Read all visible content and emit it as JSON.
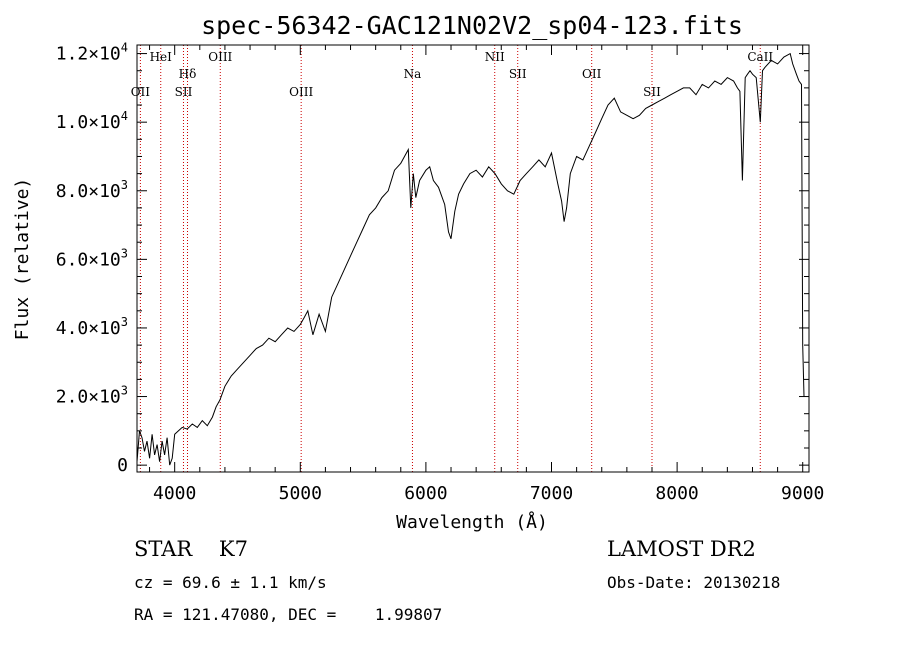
{
  "chart_data": {
    "type": "line",
    "title": "spec-56342-GAC121N02V2_sp04-123.fits",
    "xlabel": "Wavelength (Å)",
    "ylabel": "Flux (relative)",
    "xlim": [
      3700,
      9050
    ],
    "ylim": [
      -200,
      12250
    ],
    "x_ticks": [
      4000,
      5000,
      6000,
      7000,
      8000,
      9000
    ],
    "x_tick_labels": [
      "4000",
      "5000",
      "6000",
      "7000",
      "8000",
      "9000"
    ],
    "y_ticks": [
      0,
      2000,
      4000,
      6000,
      8000,
      10000,
      12000
    ],
    "y_tick_labels": [
      {
        "mant": "0",
        "exp": ""
      },
      {
        "mant": "2.0×10",
        "exp": "3"
      },
      {
        "mant": "4.0×10",
        "exp": "3"
      },
      {
        "mant": "6.0×10",
        "exp": "3"
      },
      {
        "mant": "8.0×10",
        "exp": "3"
      },
      {
        "mant": "1.0×10",
        "exp": "4"
      },
      {
        "mant": "1.2×10",
        "exp": "4"
      }
    ],
    "line_color": "#000000",
    "marker_color": "#cc0000",
    "series": [
      {
        "x": [
          3700,
          3720,
          3740,
          3760,
          3780,
          3800,
          3820,
          3840,
          3860,
          3880,
          3900,
          3920,
          3940,
          3960,
          3980,
          4000,
          4030,
          4060,
          4100,
          4140,
          4180,
          4220,
          4260,
          4300,
          4330,
          4360,
          4400,
          4450,
          4500,
          4550,
          4600,
          4650,
          4700,
          4750,
          4800,
          4850,
          4900,
          4950,
          5000,
          5030,
          5060,
          5100,
          5150,
          5200,
          5250,
          5300,
          5350,
          5400,
          5450,
          5500,
          5550,
          5600,
          5650,
          5700,
          5750,
          5800,
          5830,
          5860,
          5880,
          5900,
          5920,
          5950,
          6000,
          6030,
          6060,
          6100,
          6150,
          6180,
          6200,
          6230,
          6260,
          6300,
          6350,
          6400,
          6450,
          6500,
          6550,
          6600,
          6650,
          6700,
          6750,
          6800,
          6850,
          6900,
          6950,
          7000,
          7050,
          7080,
          7100,
          7120,
          7150,
          7200,
          7250,
          7300,
          7350,
          7400,
          7450,
          7500,
          7550,
          7600,
          7650,
          7700,
          7750,
          7800,
          7850,
          7900,
          7950,
          8000,
          8050,
          8100,
          8150,
          8200,
          8250,
          8300,
          8350,
          8400,
          8450,
          8480,
          8500,
          8520,
          8542,
          8560,
          8580,
          8600,
          8630,
          8662,
          8680,
          8700,
          8750,
          8800,
          8850,
          8900,
          8920,
          8950,
          8970,
          8990,
          9000,
          9010
        ],
        "y": [
          100,
          1000,
          800,
          400,
          700,
          200,
          900,
          300,
          600,
          100,
          700,
          300,
          800,
          0,
          200,
          900,
          1000,
          1100,
          1050,
          1200,
          1100,
          1300,
          1150,
          1400,
          1700,
          1900,
          2300,
          2600,
          2800,
          3000,
          3200,
          3400,
          3500,
          3700,
          3600,
          3800,
          4000,
          3900,
          4100,
          4300,
          4500,
          3800,
          4400,
          3900,
          4900,
          5300,
          5700,
          6100,
          6500,
          6900,
          7300,
          7500,
          7800,
          8000,
          8600,
          8800,
          9000,
          9200,
          7500,
          8500,
          7800,
          8300,
          8600,
          8700,
          8300,
          8100,
          7600,
          6800,
          6600,
          7400,
          7900,
          8200,
          8500,
          8600,
          8400,
          8700,
          8500,
          8200,
          8000,
          7900,
          8300,
          8500,
          8700,
          8900,
          8700,
          9100,
          8200,
          7700,
          7100,
          7500,
          8500,
          9000,
          8900,
          9300,
          9700,
          10100,
          10500,
          10700,
          10300,
          10200,
          10100,
          10200,
          10400,
          10500,
          10600,
          10700,
          10800,
          10900,
          11000,
          11000,
          10800,
          11100,
          11000,
          11200,
          11100,
          11300,
          11200,
          11000,
          10900,
          8300,
          11300,
          11400,
          11500,
          11400,
          11300,
          10000,
          11500,
          11600,
          11800,
          11700,
          11900,
          12000,
          11700,
          11400,
          11200,
          11100,
          3500,
          2000
        ]
      }
    ],
    "line_markers": [
      {
        "label": "OII",
        "x": 3727,
        "row": 2
      },
      {
        "label": "HeI",
        "x": 3889,
        "row": 0
      },
      {
        "label": "Hδ",
        "x": 4102,
        "row": 1
      },
      {
        "label": "SII",
        "x": 4070,
        "row": 2
      },
      {
        "label": "OIII",
        "x": 4363,
        "row": 0
      },
      {
        "label": "OIII",
        "x": 5007,
        "row": 2
      },
      {
        "label": "Na",
        "x": 5893,
        "row": 1
      },
      {
        "label": "NII",
        "x": 6548,
        "row": 0
      },
      {
        "label": "SII",
        "x": 6731,
        "row": 1
      },
      {
        "label": "OII",
        "x": 7320,
        "row": 1
      },
      {
        "label": "SII",
        "x": 7800,
        "row": 2
      },
      {
        "label": "CaII",
        "x": 8662,
        "row": 0
      }
    ]
  },
  "info": {
    "class": "STAR    K7",
    "survey": "LAMOST DR2",
    "cz": "cz = 69.6 ± 1.1 km/s",
    "obs_date": "Obs-Date: 20130218",
    "radec": "RA = 121.47080, DEC =    1.99807"
  }
}
